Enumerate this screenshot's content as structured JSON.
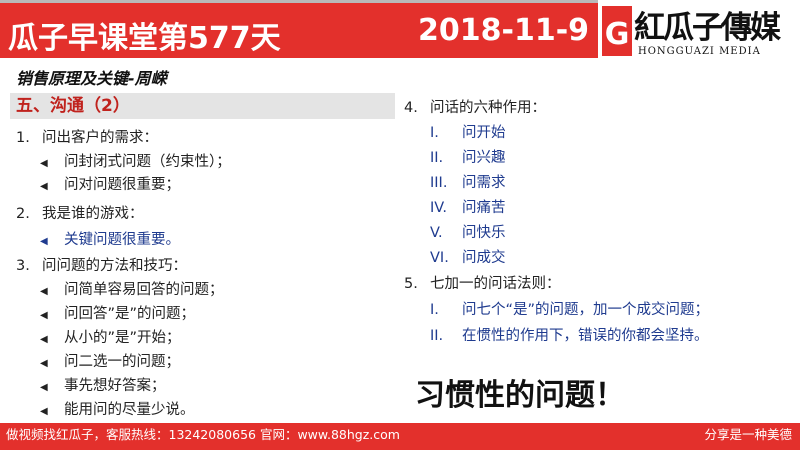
{
  "header": {
    "title": "瓜子早课堂第577天",
    "date": "2018-11-9"
  },
  "logo": {
    "name": "紅瓜子傳媒",
    "en": "HONGGUAZI MEDIA",
    "letter": "G"
  },
  "subtitle": "销售原理及关键-周嵘",
  "section": "五、沟通（2）",
  "left": [
    {
      "num": "1.",
      "text": "问出客户的需求：",
      "subs": [
        "问封闭式问题（约束性）；",
        "问对问题很重要；"
      ],
      "blue": false
    },
    {
      "num": "2.",
      "text": "我是谁的游戏：",
      "subs": [
        "关键问题很重要。"
      ],
      "blue": true
    },
    {
      "num": "3.",
      "text": "问问题的方法和技巧：",
      "subs": [
        "问简单容易回答的问题；",
        "问回答”是”的问题；",
        "从小的”是”开始；",
        "问二选一的问题；",
        "事先想好答案；",
        "能用问的尽量少说。"
      ],
      "blue": false
    }
  ],
  "right": [
    {
      "num": "4.",
      "text": "问话的六种作用：",
      "subs": [
        [
          "I.",
          "问开始"
        ],
        [
          "II.",
          "问兴趣"
        ],
        [
          "III.",
          "问需求"
        ],
        [
          "IV.",
          "问痛苦"
        ],
        [
          "V.",
          "问快乐"
        ],
        [
          "VI.",
          "问成交"
        ]
      ]
    },
    {
      "num": "5.",
      "text": "七加一的问话法则：",
      "subs": [
        [
          "I.",
          "问七个“是”的问题，加一个成交问题；"
        ],
        [
          "II.",
          "在惯性的作用下，错误的你都会坚持。"
        ]
      ]
    }
  ],
  "callout": "习惯性的问题！",
  "footer": {
    "left": "做视频找红瓜子，客服热线：13242080656  官网：www.88hgz.com",
    "right": "分享是一种美德"
  },
  "colors": {
    "brand_red": "#e3302c",
    "blue_text": "#1f3b8f",
    "section_red": "#c0221d"
  }
}
